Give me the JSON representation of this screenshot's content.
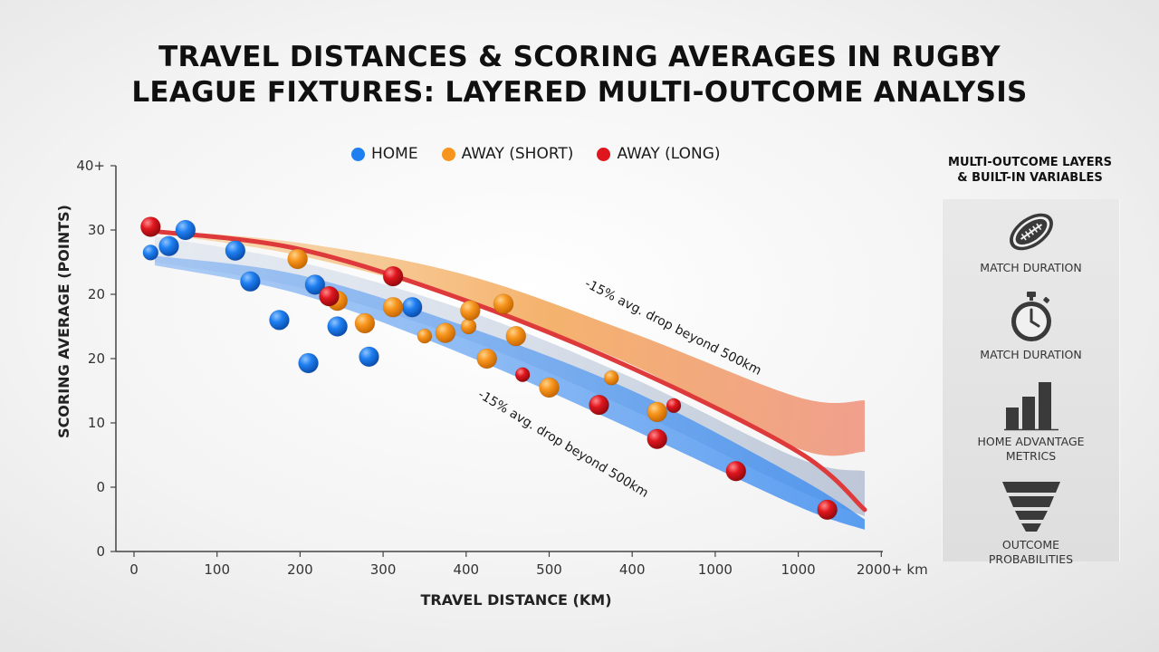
{
  "title": {
    "line1": "TRAVEL DISTANCES & SCORING AVERAGES IN RUGBY",
    "line2": "LEAGUE FIXTURES: LAYERED MULTI-OUTCOME ANALYSIS"
  },
  "legend": [
    {
      "label": "HOME",
      "color": "#1e7ff0"
    },
    {
      "label": "AWAY (SHORT)",
      "color": "#f7951e"
    },
    {
      "label": "AWAY (LONG)",
      "color": "#e0161e"
    }
  ],
  "side_panel": {
    "title_line1": "MULTI-OUTCOME LAYERS",
    "title_line2": "& BUILT-IN VARIABLES",
    "features": [
      {
        "icon": "rugby-ball-icon",
        "label_lines": [
          "MATCH DURATION"
        ]
      },
      {
        "icon": "stopwatch-icon",
        "label_lines": [
          "MATCH DURATION"
        ]
      },
      {
        "icon": "bar-chart-icon",
        "label_lines": [
          "HOME ADVANTAGE",
          "METRICS"
        ]
      },
      {
        "icon": "funnel-icon",
        "label_lines": [
          "OUTCOME",
          "PROBABILITIES"
        ]
      }
    ]
  },
  "chart_data": {
    "type": "scatter",
    "xlabel": "TRAVEL DISTANCE (KM)",
    "ylabel": "SCORING AVERAGE (POINTS)",
    "x_tick_labels": [
      "0",
      "100",
      "200",
      "300",
      "400",
      "500",
      "400",
      "1000",
      "1000",
      "2000+ km"
    ],
    "y_tick_labels": [
      "0",
      "0",
      "10",
      "20",
      "20",
      "30",
      "40+"
    ],
    "xlim": [
      0,
      9
    ],
    "ylim": [
      0,
      6
    ],
    "x_axis_note": "x values expressed in tick-index units (tick labels are non-linear)",
    "y_axis_note": "y values expressed in tick-index units (tick labels are non-linear)",
    "annotations": [
      {
        "text": "-15% avg. drop beyond 500km",
        "band": "upper"
      },
      {
        "text": "-15% avg. drop beyond 500km",
        "band": "lower"
      }
    ],
    "bands": [
      {
        "name": "away-long-band",
        "color": "#f2a04a",
        "upper": [
          [
            0.25,
            5.0
          ],
          [
            2,
            4.8
          ],
          [
            4,
            4.3
          ],
          [
            6,
            3.4
          ],
          [
            8,
            2.4
          ],
          [
            8.8,
            2.35
          ]
        ],
        "lower": [
          [
            0.25,
            4.95
          ],
          [
            2,
            4.6
          ],
          [
            4,
            3.9
          ],
          [
            6,
            2.9
          ],
          [
            8,
            1.6
          ],
          [
            8.8,
            1.55
          ]
        ]
      },
      {
        "name": "away-short-band",
        "color": "#98a9c4",
        "upper": [
          [
            0.25,
            4.9
          ],
          [
            2,
            4.5
          ],
          [
            4,
            3.75
          ],
          [
            6,
            2.7
          ],
          [
            8,
            1.45
          ],
          [
            8.8,
            1.25
          ]
        ],
        "lower": [
          [
            0.25,
            4.5
          ],
          [
            2,
            4.1
          ],
          [
            4,
            3.3
          ],
          [
            6,
            2.2
          ],
          [
            8,
            0.95
          ],
          [
            8.8,
            0.55
          ]
        ]
      },
      {
        "name": "home-band",
        "color": "#3f8ef0",
        "upper": [
          [
            0.25,
            4.6
          ],
          [
            2,
            4.3
          ],
          [
            4,
            3.5
          ],
          [
            6,
            2.5
          ],
          [
            8,
            1.15
          ],
          [
            8.8,
            0.5
          ]
        ],
        "lower": [
          [
            0.25,
            4.45
          ],
          [
            2,
            4.0
          ],
          [
            4,
            3.05
          ],
          [
            6,
            1.9
          ],
          [
            8,
            0.7
          ],
          [
            8.8,
            0.34
          ]
        ]
      }
    ],
    "trend_lines": [
      {
        "name": "away-long-trend",
        "color": "#de3a3c",
        "points": [
          [
            0.25,
            4.98
          ],
          [
            2,
            4.7
          ],
          [
            4,
            3.9
          ],
          [
            6,
            2.85
          ],
          [
            8,
            1.55
          ],
          [
            8.8,
            0.65
          ]
        ]
      }
    ],
    "series": [
      {
        "name": "HOME",
        "color": "#1e7ff0",
        "points": [
          [
            0.2,
            4.65
          ],
          [
            0.42,
            4.75
          ],
          [
            0.62,
            5.0
          ],
          [
            1.22,
            4.68
          ],
          [
            1.4,
            4.2
          ],
          [
            1.75,
            3.6
          ],
          [
            2.1,
            2.93
          ],
          [
            2.18,
            4.15
          ],
          [
            2.45,
            3.5
          ],
          [
            2.83,
            3.03
          ],
          [
            3.35,
            3.8
          ]
        ]
      },
      {
        "name": "AWAY (SHORT)",
        "color": "#f7951e",
        "points": [
          [
            1.97,
            4.55
          ],
          [
            2.45,
            3.9
          ],
          [
            2.78,
            3.55
          ],
          [
            3.12,
            3.8
          ],
          [
            3.5,
            3.35
          ],
          [
            3.75,
            3.4
          ],
          [
            4.03,
            3.5
          ],
          [
            4.05,
            3.75
          ],
          [
            4.25,
            3.0
          ],
          [
            4.45,
            3.85
          ],
          [
            4.6,
            3.35
          ],
          [
            5.0,
            2.55
          ],
          [
            5.75,
            2.7
          ],
          [
            6.3,
            2.17
          ]
        ]
      },
      {
        "name": "AWAY (LONG)",
        "color": "#e0161e",
        "points": [
          [
            0.2,
            5.05
          ],
          [
            2.35,
            3.97
          ],
          [
            3.12,
            4.28
          ],
          [
            4.68,
            2.75
          ],
          [
            5.6,
            2.28
          ],
          [
            6.3,
            1.75
          ],
          [
            6.5,
            2.27
          ],
          [
            7.25,
            1.25
          ],
          [
            8.35,
            0.65
          ]
        ]
      }
    ]
  }
}
